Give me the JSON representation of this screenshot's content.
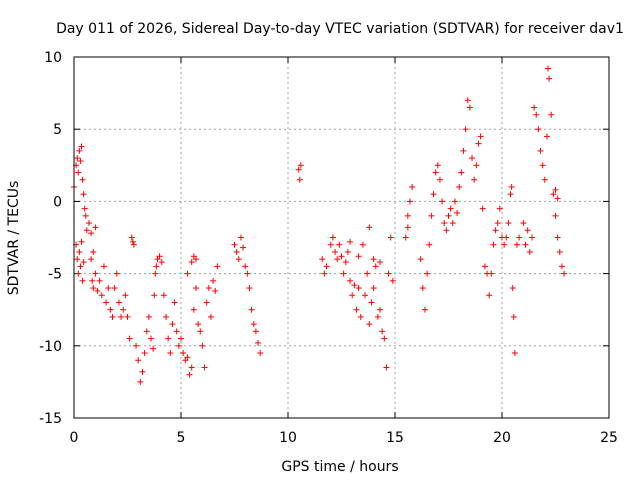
{
  "chart_data": {
    "type": "scatter",
    "title": "Day 011 of 2026, Sidereal Day-to-day VTEC variation (SDTVAR) for receiver dav1",
    "xlabel": "GPS time / hours",
    "ylabel": "SDTVAR / TECUs",
    "xlim": [
      0,
      25
    ],
    "ylim": [
      -15,
      10
    ],
    "xticks": [
      "0",
      "5",
      "10",
      "15",
      "20",
      "25"
    ],
    "yticks": [
      "10",
      "5",
      "0",
      "-5",
      "-10",
      "-15"
    ],
    "grid": true,
    "marker": "plus",
    "marker_color": "#ff0000",
    "series": [
      {
        "name": "SDTVAR",
        "points": [
          [
            0.0,
            1.0
          ],
          [
            0.1,
            2.5
          ],
          [
            0.15,
            3.0
          ],
          [
            0.2,
            2.0
          ],
          [
            0.25,
            3.5
          ],
          [
            0.3,
            2.8
          ],
          [
            0.35,
            3.8
          ],
          [
            0.4,
            1.5
          ],
          [
            0.45,
            0.5
          ],
          [
            0.5,
            -0.5
          ],
          [
            0.1,
            -3.0
          ],
          [
            0.15,
            -4.0
          ],
          [
            0.2,
            -5.0
          ],
          [
            0.25,
            -3.5
          ],
          [
            0.3,
            -4.5
          ],
          [
            0.35,
            -2.8
          ],
          [
            0.4,
            -5.5
          ],
          [
            0.45,
            -4.2
          ],
          [
            0.55,
            -1.0
          ],
          [
            0.6,
            -2.0
          ],
          [
            0.7,
            -1.5
          ],
          [
            0.8,
            -2.2
          ],
          [
            0.9,
            -3.5
          ],
          [
            1.0,
            -1.8
          ],
          [
            0.8,
            -4.0
          ],
          [
            0.85,
            -5.5
          ],
          [
            0.9,
            -6.0
          ],
          [
            1.0,
            -5.0
          ],
          [
            1.1,
            -6.2
          ],
          [
            1.2,
            -5.5
          ],
          [
            1.3,
            -6.5
          ],
          [
            1.4,
            -4.5
          ],
          [
            1.5,
            -7.0
          ],
          [
            1.6,
            -6.0
          ],
          [
            1.7,
            -7.5
          ],
          [
            1.8,
            -8.0
          ],
          [
            1.9,
            -6.0
          ],
          [
            2.0,
            -5.0
          ],
          [
            2.1,
            -7.0
          ],
          [
            2.2,
            -8.0
          ],
          [
            2.3,
            -7.5
          ],
          [
            2.4,
            -6.5
          ],
          [
            2.5,
            -8.0
          ],
          [
            2.6,
            -9.5
          ],
          [
            2.7,
            -2.5
          ],
          [
            2.75,
            -2.8
          ],
          [
            2.8,
            -3.0
          ],
          [
            2.9,
            -10.0
          ],
          [
            3.0,
            -11.0
          ],
          [
            3.1,
            -12.5
          ],
          [
            3.2,
            -11.8
          ],
          [
            3.3,
            -10.5
          ],
          [
            3.4,
            -9.0
          ],
          [
            3.5,
            -8.0
          ],
          [
            3.6,
            -9.5
          ],
          [
            3.7,
            -10.2
          ],
          [
            3.75,
            -6.5
          ],
          [
            3.8,
            -5.0
          ],
          [
            3.85,
            -4.5
          ],
          [
            3.9,
            -4.0
          ],
          [
            4.0,
            -3.8
          ],
          [
            4.1,
            -4.2
          ],
          [
            4.2,
            -6.5
          ],
          [
            4.3,
            -8.0
          ],
          [
            4.4,
            -9.5
          ],
          [
            4.5,
            -10.5
          ],
          [
            4.6,
            -8.5
          ],
          [
            4.7,
            -7.0
          ],
          [
            4.8,
            -9.0
          ],
          [
            4.9,
            -10.0
          ],
          [
            5.0,
            -9.5
          ],
          [
            5.1,
            -10.5
          ],
          [
            5.2,
            -11.0
          ],
          [
            5.3,
            -10.8
          ],
          [
            5.4,
            -12.0
          ],
          [
            5.5,
            -11.5
          ],
          [
            5.6,
            -7.5
          ],
          [
            5.7,
            -6.0
          ],
          [
            5.8,
            -8.5
          ],
          [
            5.9,
            -9.0
          ],
          [
            6.0,
            -10.0
          ],
          [
            6.1,
            -11.5
          ],
          [
            6.2,
            -7.0
          ],
          [
            6.3,
            -6.0
          ],
          [
            6.4,
            -8.0
          ],
          [
            6.5,
            -5.5
          ],
          [
            6.6,
            -6.2
          ],
          [
            6.7,
            -4.5
          ],
          [
            5.5,
            -4.2
          ],
          [
            5.6,
            -3.8
          ],
          [
            5.7,
            -4.0
          ],
          [
            5.3,
            -5.0
          ],
          [
            7.5,
            -3.0
          ],
          [
            7.6,
            -3.5
          ],
          [
            7.7,
            -4.0
          ],
          [
            7.8,
            -2.5
          ],
          [
            7.9,
            -3.2
          ],
          [
            8.0,
            -4.5
          ],
          [
            8.1,
            -5.0
          ],
          [
            8.2,
            -6.0
          ],
          [
            8.3,
            -7.5
          ],
          [
            8.4,
            -8.5
          ],
          [
            8.5,
            -9.0
          ],
          [
            8.6,
            -9.8
          ],
          [
            8.7,
            -10.5
          ],
          [
            10.5,
            2.2
          ],
          [
            10.55,
            1.5
          ],
          [
            10.6,
            2.5
          ],
          [
            11.6,
            -4.0
          ],
          [
            11.7,
            -5.0
          ],
          [
            11.8,
            -4.5
          ],
          [
            12.0,
            -3.0
          ],
          [
            12.1,
            -2.5
          ],
          [
            12.2,
            -3.5
          ],
          [
            12.3,
            -4.0
          ],
          [
            12.4,
            -3.0
          ],
          [
            12.5,
            -3.8
          ],
          [
            12.6,
            -5.0
          ],
          [
            12.7,
            -4.2
          ],
          [
            12.8,
            -3.5
          ],
          [
            12.9,
            -5.5
          ],
          [
            13.0,
            -6.5
          ],
          [
            13.1,
            -5.8
          ],
          [
            13.2,
            -7.5
          ],
          [
            13.3,
            -6.0
          ],
          [
            13.4,
            -8.0
          ],
          [
            13.5,
            -3.0
          ],
          [
            13.6,
            -6.5
          ],
          [
            13.7,
            -5.0
          ],
          [
            13.8,
            -8.5
          ],
          [
            13.9,
            -7.0
          ],
          [
            14.0,
            -6.0
          ],
          [
            14.1,
            -4.5
          ],
          [
            14.2,
            -8.0
          ],
          [
            14.3,
            -7.5
          ],
          [
            14.4,
            -9.0
          ],
          [
            14.5,
            -9.5
          ],
          [
            14.6,
            -11.5
          ],
          [
            14.7,
            -5.0
          ],
          [
            14.8,
            -2.5
          ],
          [
            14.9,
            -5.5
          ],
          [
            14.0,
            -4.0
          ],
          [
            13.8,
            -1.8
          ],
          [
            12.9,
            -2.8
          ],
          [
            13.3,
            -3.8
          ],
          [
            14.3,
            -4.2
          ],
          [
            15.5,
            -2.5
          ],
          [
            15.6,
            -1.8
          ],
          [
            15.7,
            0.0
          ],
          [
            15.8,
            1.0
          ],
          [
            15.6,
            -1.0
          ],
          [
            16.2,
            -4.0
          ],
          [
            16.3,
            -6.0
          ],
          [
            16.4,
            -7.5
          ],
          [
            16.5,
            -5.0
          ],
          [
            16.6,
            -3.0
          ],
          [
            16.7,
            -1.0
          ],
          [
            16.8,
            0.5
          ],
          [
            16.9,
            2.0
          ],
          [
            17.0,
            2.5
          ],
          [
            17.1,
            1.5
          ],
          [
            17.2,
            0.0
          ],
          [
            17.3,
            -1.5
          ],
          [
            17.4,
            -2.0
          ],
          [
            17.5,
            -1.0
          ],
          [
            17.6,
            -0.5
          ],
          [
            17.7,
            -1.5
          ],
          [
            17.8,
            0.0
          ],
          [
            17.9,
            -0.8
          ],
          [
            18.0,
            1.0
          ],
          [
            18.1,
            2.0
          ],
          [
            18.2,
            3.5
          ],
          [
            18.3,
            5.0
          ],
          [
            18.4,
            7.0
          ],
          [
            18.5,
            6.5
          ],
          [
            18.6,
            3.0
          ],
          [
            18.7,
            1.5
          ],
          [
            18.8,
            2.5
          ],
          [
            18.9,
            4.0
          ],
          [
            19.0,
            4.5
          ],
          [
            19.1,
            -0.5
          ],
          [
            19.2,
            -4.5
          ],
          [
            19.3,
            -5.0
          ],
          [
            19.4,
            -6.5
          ],
          [
            19.5,
            -5.0
          ],
          [
            19.6,
            -3.0
          ],
          [
            19.7,
            -2.0
          ],
          [
            19.8,
            -1.5
          ],
          [
            19.9,
            -0.5
          ],
          [
            20.0,
            -2.5
          ],
          [
            20.1,
            -3.0
          ],
          [
            20.2,
            -2.5
          ],
          [
            20.3,
            -1.5
          ],
          [
            20.4,
            0.5
          ],
          [
            20.45,
            1.0
          ],
          [
            20.5,
            -6.0
          ],
          [
            20.55,
            -8.0
          ],
          [
            20.6,
            -10.5
          ],
          [
            20.7,
            -3.0
          ],
          [
            20.8,
            -2.5
          ],
          [
            21.0,
            -1.5
          ],
          [
            21.1,
            -3.0
          ],
          [
            21.2,
            -2.0
          ],
          [
            21.3,
            -3.5
          ],
          [
            21.4,
            -2.5
          ],
          [
            21.5,
            6.5
          ],
          [
            21.6,
            6.0
          ],
          [
            21.7,
            5.0
          ],
          [
            21.8,
            3.5
          ],
          [
            21.9,
            2.5
          ],
          [
            22.0,
            1.5
          ],
          [
            22.1,
            4.5
          ],
          [
            22.15,
            9.2
          ],
          [
            22.2,
            8.5
          ],
          [
            22.3,
            6.0
          ],
          [
            22.4,
            0.5
          ],
          [
            22.5,
            -1.0
          ],
          [
            22.6,
            -2.5
          ],
          [
            22.7,
            -3.5
          ],
          [
            22.8,
            -4.5
          ],
          [
            22.9,
            -5.0
          ],
          [
            22.5,
            0.8
          ],
          [
            22.6,
            0.2
          ]
        ]
      }
    ]
  }
}
